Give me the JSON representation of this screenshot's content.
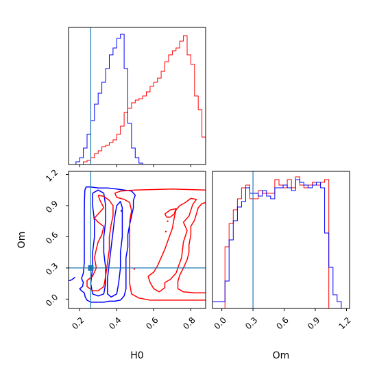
{
  "chart_data": {
    "type": "corner-plot",
    "parameters": [
      "H0",
      "Om"
    ],
    "truth": {
      "H0": 0.26,
      "Om": 0.3
    },
    "colors": {
      "red": "#ff0000",
      "blue": "#0000ff",
      "truth": "#1f77b4"
    },
    "axes": {
      "H0": {
        "label": "H0",
        "lim": [
          0.14,
          0.88
        ],
        "ticks": [
          0.2,
          0.4,
          0.6,
          0.8
        ],
        "tick_labels": [
          "0.2",
          "0.4",
          "0.6",
          "0.8"
        ]
      },
      "Om": {
        "label": "Om",
        "lim": [
          -0.09,
          1.23
        ],
        "ticks": [
          0.0,
          0.3,
          0.6,
          0.9,
          1.2
        ],
        "tick_labels": [
          "0.0",
          "0.3",
          "0.6",
          "0.9",
          "1.2"
        ]
      }
    },
    "hist_H0": {
      "edges": [
        0.14,
        0.16,
        0.18,
        0.2,
        0.22,
        0.24,
        0.26,
        0.28,
        0.3,
        0.32,
        0.34,
        0.36,
        0.38,
        0.4,
        0.42,
        0.44,
        0.46,
        0.48,
        0.5,
        0.52,
        0.54,
        0.56,
        0.58,
        0.6,
        0.62,
        0.64,
        0.66,
        0.68,
        0.7,
        0.72,
        0.74,
        0.76,
        0.78,
        0.8,
        0.82,
        0.84,
        0.86,
        0.88
      ],
      "ymax": 100,
      "series": [
        {
          "color": "red",
          "counts": [
            0,
            0,
            0,
            0,
            2,
            3,
            5,
            8,
            10,
            13,
            14,
            16,
            18,
            22,
            28,
            38,
            41,
            45,
            47,
            48,
            50,
            53,
            57,
            60,
            63,
            68,
            75,
            80,
            83,
            85,
            90,
            94,
            80,
            73,
            50,
            40,
            20
          ]
        },
        {
          "color": "blue",
          "counts": [
            0,
            0,
            2,
            5,
            12,
            22,
            32,
            44,
            52,
            60,
            70,
            80,
            85,
            92,
            95,
            70,
            30,
            12,
            5,
            1,
            0,
            0,
            0,
            0,
            0,
            0,
            0,
            0,
            0,
            0,
            0,
            0,
            0,
            0,
            0,
            0,
            0
          ]
        }
      ]
    },
    "hist_Om": {
      "edges": [
        -0.09,
        -0.05,
        -0.01,
        0.03,
        0.07,
        0.11,
        0.15,
        0.19,
        0.23,
        0.27,
        0.31,
        0.35,
        0.39,
        0.43,
        0.47,
        0.51,
        0.55,
        0.59,
        0.63,
        0.67,
        0.71,
        0.75,
        0.79,
        0.83,
        0.87,
        0.91,
        0.95,
        0.99,
        1.03,
        1.07,
        1.11,
        1.15,
        1.19,
        1.23
      ],
      "ymax": 100,
      "series": [
        {
          "color": "red",
          "counts": [
            0,
            0,
            0,
            45,
            62,
            72,
            80,
            88,
            90,
            80,
            80,
            86,
            84,
            84,
            84,
            94,
            90,
            88,
            94,
            88,
            96,
            90,
            88,
            90,
            92,
            90,
            92,
            94,
            0,
            0,
            0,
            0,
            0
          ]
        },
        {
          "color": "blue",
          "counts": [
            5,
            5,
            5,
            20,
            50,
            64,
            74,
            78,
            88,
            84,
            84,
            82,
            86,
            82,
            80,
            88,
            88,
            90,
            88,
            86,
            94,
            92,
            90,
            88,
            90,
            92,
            88,
            55,
            30,
            10,
            5,
            0,
            0
          ]
        }
      ]
    },
    "contours": [
      {
        "color": "blue",
        "paths": [
          [
            [
              0.228,
              1.05
            ],
            [
              0.235,
              1.08
            ],
            [
              0.26,
              1.08
            ],
            [
              0.3,
              1.07
            ],
            [
              0.35,
              1.07
            ],
            [
              0.4,
              1.06
            ],
            [
              0.44,
              1.05
            ],
            [
              0.48,
              1.04
            ],
            [
              0.5,
              1.0
            ],
            [
              0.49,
              0.95
            ],
            [
              0.49,
              0.88
            ],
            [
              0.48,
              0.8
            ],
            [
              0.47,
              0.72
            ],
            [
              0.46,
              0.62
            ],
            [
              0.46,
              0.5
            ],
            [
              0.45,
              0.4
            ],
            [
              0.45,
              0.3
            ],
            [
              0.45,
              0.2
            ],
            [
              0.45,
              0.1
            ],
            [
              0.44,
              0.03
            ],
            [
              0.42,
              -0.01
            ],
            [
              0.39,
              -0.02
            ],
            [
              0.36,
              -0.02
            ],
            [
              0.33,
              -0.03
            ],
            [
              0.3,
              -0.03
            ],
            [
              0.26,
              -0.03
            ],
            [
              0.24,
              -0.01
            ],
            [
              0.23,
              0.02
            ],
            [
              0.225,
              0.06
            ],
            [
              0.21,
              0.08
            ],
            [
              0.2,
              0.1
            ],
            [
              0.215,
              0.12
            ],
            [
              0.22,
              0.16
            ],
            [
              0.21,
              0.2
            ],
            [
              0.22,
              0.25
            ],
            [
              0.225,
              0.35
            ],
            [
              0.225,
              0.5
            ],
            [
              0.225,
              0.65
            ],
            [
              0.225,
              0.8
            ],
            [
              0.226,
              0.95
            ],
            [
              0.228,
              1.05
            ]
          ],
          [
            [
              0.27,
              1.02
            ],
            [
              0.3,
              1.05
            ],
            [
              0.33,
              1.02
            ],
            [
              0.34,
              0.9
            ],
            [
              0.34,
              0.75
            ],
            [
              0.33,
              0.6
            ],
            [
              0.33,
              0.45
            ],
            [
              0.34,
              0.3
            ],
            [
              0.34,
              0.15
            ],
            [
              0.33,
              0.05
            ],
            [
              0.3,
              0.03
            ],
            [
              0.27,
              0.05
            ],
            [
              0.26,
              0.15
            ],
            [
              0.27,
              0.3
            ],
            [
              0.27,
              0.45
            ],
            [
              0.28,
              0.6
            ],
            [
              0.28,
              0.75
            ],
            [
              0.27,
              0.9
            ],
            [
              0.27,
              1.02
            ]
          ],
          [
            [
              0.4,
              0.9
            ],
            [
              0.42,
              0.94
            ],
            [
              0.43,
              0.88
            ],
            [
              0.43,
              0.75
            ],
            [
              0.43,
              0.6
            ],
            [
              0.42,
              0.45
            ],
            [
              0.42,
              0.3
            ],
            [
              0.41,
              0.15
            ],
            [
              0.4,
              0.05
            ],
            [
              0.37,
              0.02
            ],
            [
              0.35,
              0.05
            ],
            [
              0.35,
              0.2
            ],
            [
              0.36,
              0.35
            ],
            [
              0.37,
              0.5
            ],
            [
              0.38,
              0.65
            ],
            [
              0.39,
              0.8
            ],
            [
              0.4,
              0.9
            ]
          ],
          [
            [
              0.175,
              0.21
            ],
            [
              0.16,
              0.19
            ],
            [
              0.15,
              0.18
            ],
            [
              0.14,
              0.18
            ]
          ]
        ]
      },
      {
        "color": "red",
        "paths": [
          [
            [
              0.88,
              1.05
            ],
            [
              0.7,
              1.06
            ],
            [
              0.5,
              1.05
            ],
            [
              0.42,
              1.04
            ],
            [
              0.39,
              1.02
            ],
            [
              0.4,
              0.98
            ],
            [
              0.44,
              0.96
            ],
            [
              0.47,
              0.93
            ],
            [
              0.48,
              0.85
            ],
            [
              0.47,
              0.75
            ],
            [
              0.47,
              0.62
            ],
            [
              0.47,
              0.45
            ],
            [
              0.47,
              0.3
            ],
            [
              0.47,
              0.15
            ],
            [
              0.48,
              0.05
            ],
            [
              0.52,
              0.01
            ],
            [
              0.58,
              -0.01
            ],
            [
              0.7,
              -0.01
            ],
            [
              0.8,
              -0.01
            ],
            [
              0.88,
              -0.01
            ]
          ],
          [
            [
              0.88,
              0.93
            ],
            [
              0.86,
              0.92
            ],
            [
              0.84,
              0.88
            ],
            [
              0.83,
              0.82
            ],
            [
              0.82,
              0.76
            ],
            [
              0.8,
              0.7
            ],
            [
              0.8,
              0.62
            ],
            [
              0.79,
              0.52
            ],
            [
              0.79,
              0.45
            ],
            [
              0.78,
              0.38
            ],
            [
              0.76,
              0.3
            ],
            [
              0.74,
              0.23
            ],
            [
              0.73,
              0.17
            ],
            [
              0.73,
              0.1
            ],
            [
              0.76,
              0.07
            ],
            [
              0.82,
              0.06
            ],
            [
              0.88,
              0.06
            ]
          ],
          [
            [
              0.72,
              0.25
            ],
            [
              0.75,
              0.4
            ],
            [
              0.76,
              0.55
            ],
            [
              0.78,
              0.66
            ],
            [
              0.76,
              0.74
            ],
            [
              0.79,
              0.8
            ],
            [
              0.81,
              0.91
            ],
            [
              0.83,
              0.96
            ],
            [
              0.8,
              0.97
            ],
            [
              0.77,
              0.93
            ],
            [
              0.74,
              0.9
            ],
            [
              0.72,
              0.86
            ],
            [
              0.71,
              0.78
            ],
            [
              0.7,
              0.68
            ],
            [
              0.68,
              0.58
            ],
            [
              0.66,
              0.48
            ],
            [
              0.64,
              0.4
            ],
            [
              0.62,
              0.32
            ],
            [
              0.6,
              0.26
            ],
            [
              0.57,
              0.22
            ],
            [
              0.58,
              0.16
            ],
            [
              0.6,
              0.1
            ],
            [
              0.63,
              0.07
            ],
            [
              0.66,
              0.11
            ],
            [
              0.66,
              0.16
            ],
            [
              0.69,
              0.19
            ],
            [
              0.72,
              0.25
            ]
          ],
          [
            [
              0.66,
              0.82
            ],
            [
              0.69,
              0.86
            ],
            [
              0.72,
              0.87
            ],
            [
              0.71,
              0.82
            ],
            [
              0.69,
              0.79
            ],
            [
              0.67,
              0.79
            ],
            [
              0.66,
              0.82
            ]
          ],
          [
            [
              0.3,
              1.0
            ],
            [
              0.33,
              0.99
            ],
            [
              0.36,
              0.95
            ],
            [
              0.38,
              0.9
            ],
            [
              0.38,
              0.8
            ],
            [
              0.37,
              0.72
            ],
            [
              0.36,
              0.6
            ],
            [
              0.36,
              0.48
            ],
            [
              0.35,
              0.35
            ],
            [
              0.34,
              0.22
            ],
            [
              0.33,
              0.12
            ],
            [
              0.3,
              0.08
            ],
            [
              0.27,
              0.08
            ],
            [
              0.24,
              0.12
            ],
            [
              0.24,
              0.18
            ],
            [
              0.27,
              0.22
            ],
            [
              0.29,
              0.3
            ],
            [
              0.28,
              0.4
            ],
            [
              0.29,
              0.48
            ],
            [
              0.3,
              0.55
            ],
            [
              0.32,
              0.62
            ],
            [
              0.33,
              0.7
            ],
            [
              0.3,
              0.74
            ],
            [
              0.28,
              0.78
            ],
            [
              0.3,
              0.82
            ],
            [
              0.33,
              0.88
            ],
            [
              0.31,
              0.95
            ],
            [
              0.3,
              1.0
            ]
          ]
        ]
      }
    ],
    "points": [
      {
        "color": "red",
        "H0": 0.675,
        "Om": 0.75
      },
      {
        "color": "red",
        "H0": 0.665,
        "Om": 0.65
      },
      {
        "color": "red",
        "H0": 0.495,
        "Om": 0.29
      },
      {
        "color": "blue",
        "H0": 0.425,
        "Om": 0.85
      },
      {
        "color": "truth",
        "H0": 0.26,
        "Om": 0.3,
        "size": 4
      }
    ]
  }
}
